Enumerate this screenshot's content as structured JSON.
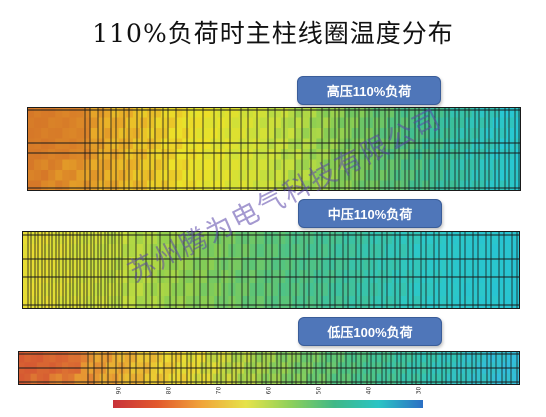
{
  "title": "110%负荷时主柱线圈温度分布",
  "panels": [
    {
      "label": "高压110%负荷"
    },
    {
      "label": "中压110%负荷"
    },
    {
      "label": "低压100%负荷"
    }
  ],
  "watermark": "苏州腾为电气科技有限公司",
  "colorbar": {
    "tick_labels": [
      "90",
      "80",
      "70",
      "60",
      "50",
      "40",
      "30"
    ],
    "colors": [
      "#c8323a",
      "#e2592d",
      "#f0a43a",
      "#e6e34a",
      "#8ed05a",
      "#3fb887",
      "#2ac4c4",
      "#2b6fc4"
    ]
  }
}
